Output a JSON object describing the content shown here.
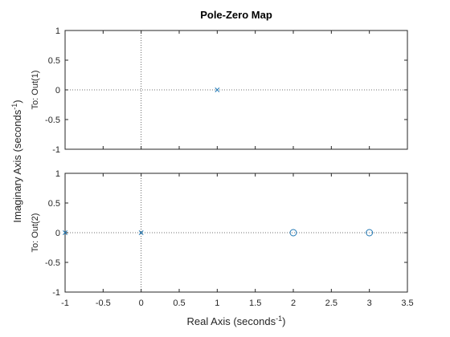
{
  "chart_data": {
    "type": "scatter",
    "title": "Pole-Zero Map",
    "xlabel": "Real  Axis  (seconds",
    "xlabel_sup": "-1",
    "xlabel_end": ")",
    "ylabel": "Imaginary  Axis  (seconds",
    "ylabel_sup": "-1",
    "ylabel_end": ")",
    "xlim": [
      -1,
      3.5
    ],
    "xticks": [
      -1,
      -0.5,
      0,
      0.5,
      1,
      1.5,
      2,
      2.5,
      3,
      3.5
    ],
    "xtick_labels": [
      "-1",
      "-0.5",
      "0",
      "0.5",
      "1",
      "1.5",
      "2",
      "2.5",
      "3",
      "3.5"
    ],
    "ylim": [
      -1,
      1
    ],
    "yticks": [
      -1,
      -0.5,
      0,
      0.5,
      1
    ],
    "ytick_labels": [
      "-1",
      "-0.5",
      "0",
      "0.5",
      "1"
    ],
    "grid": false,
    "marker_color": "#1f77b4",
    "subplots": [
      {
        "row_label": "To: Out(1)",
        "poles": [
          {
            "x": 1,
            "y": 0
          }
        ],
        "zeros": []
      },
      {
        "row_label": "To: Out(2)",
        "poles": [
          {
            "x": -1,
            "y": 0
          },
          {
            "x": 0,
            "y": 0
          }
        ],
        "zeros": [
          {
            "x": 2,
            "y": 0
          },
          {
            "x": 3,
            "y": 0
          }
        ]
      }
    ]
  }
}
